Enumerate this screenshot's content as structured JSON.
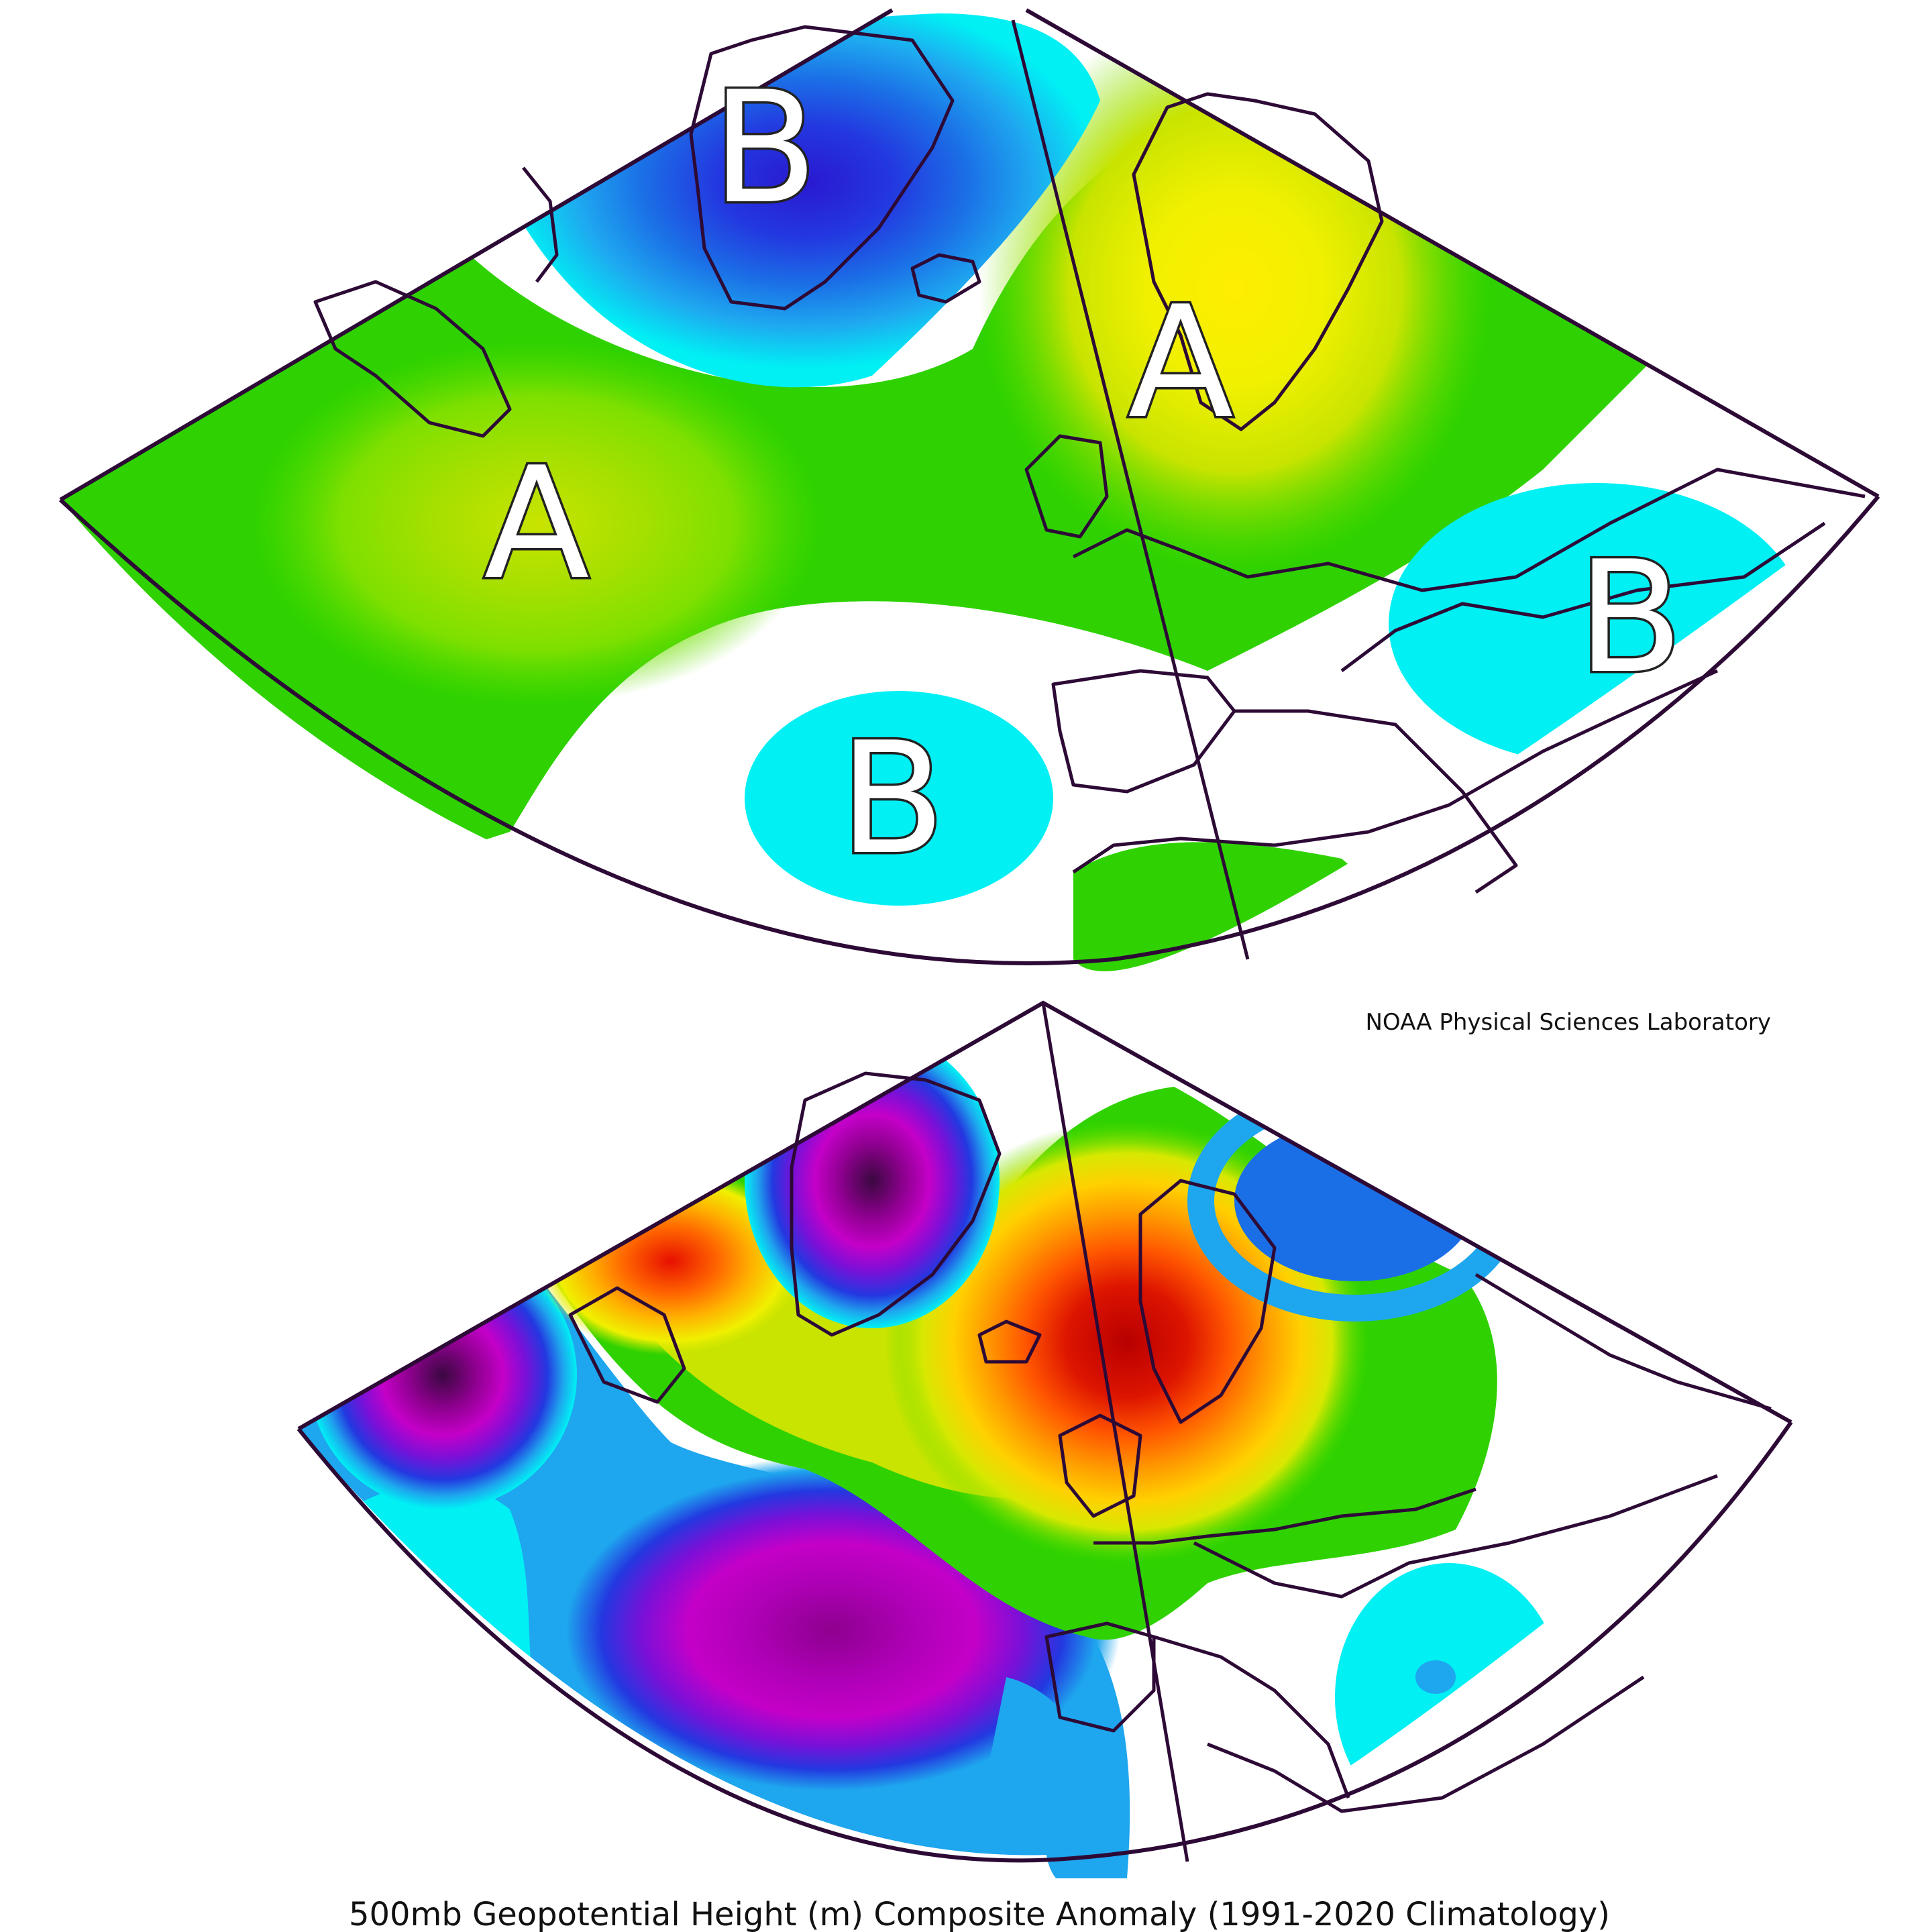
{
  "credit": "NOAA Physical Sciences Laboratory",
  "caption": "500mb Geopotential Height (m) Composite Anomaly (1991-2020 Climatology)",
  "top_map": {
    "centers": [
      {
        "label": "B",
        "type": "low"
      },
      {
        "label": "A",
        "type": "high"
      },
      {
        "label": "A",
        "type": "high"
      },
      {
        "label": "B",
        "type": "low"
      },
      {
        "label": "B",
        "type": "low"
      }
    ]
  },
  "colors": {
    "outline": "#2d0a36",
    "white": "#ffffff",
    "cyan": "#00f0f4",
    "light_blue": "#1ea6ee",
    "blue": "#1b5fe0",
    "dark_blue": "#2328d8",
    "violet": "#7a10d8",
    "magenta": "#c400c8",
    "purple": "#8e008f",
    "dark_purple": "#4a0a50",
    "green": "#2fd200",
    "light_green": "#5fde00",
    "yellow_green": "#a8e000",
    "yellow": "#f0f000",
    "gold": "#ffd000",
    "orange": "#ff9a00",
    "dark_orange": "#ff6600",
    "red": "#ee2200",
    "dark_red": "#c40000"
  }
}
